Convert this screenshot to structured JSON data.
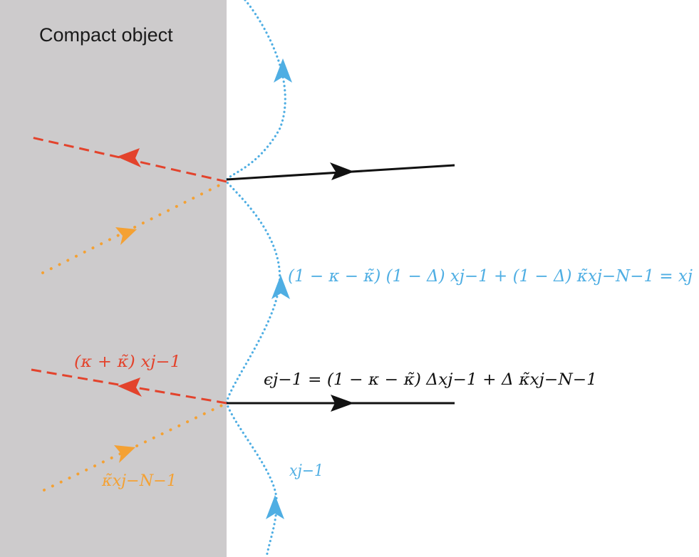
{
  "colors": {
    "object_fill": "#cdcbcc",
    "blue": "#4faee3",
    "red": "#e3432c",
    "orange": "#f4a133",
    "black": "#111111",
    "label_text": "#1a1a1a"
  },
  "object_label": "Compact object",
  "equations": {
    "blue_update": "(1 − κ − κ̃) (1 − Δ) xj−1 + (1 − Δ) κ̃xj−N−1 = xj",
    "emission": "ϵj−1 = (1 − κ − κ̃) Δxj−1 + Δ κ̃xj−N−1"
  },
  "labels": {
    "red_reflected": "(κ + κ̃) xj−1",
    "orange_incoming": "κ̃xj−N−1",
    "blue_incoming": "xj−1"
  }
}
